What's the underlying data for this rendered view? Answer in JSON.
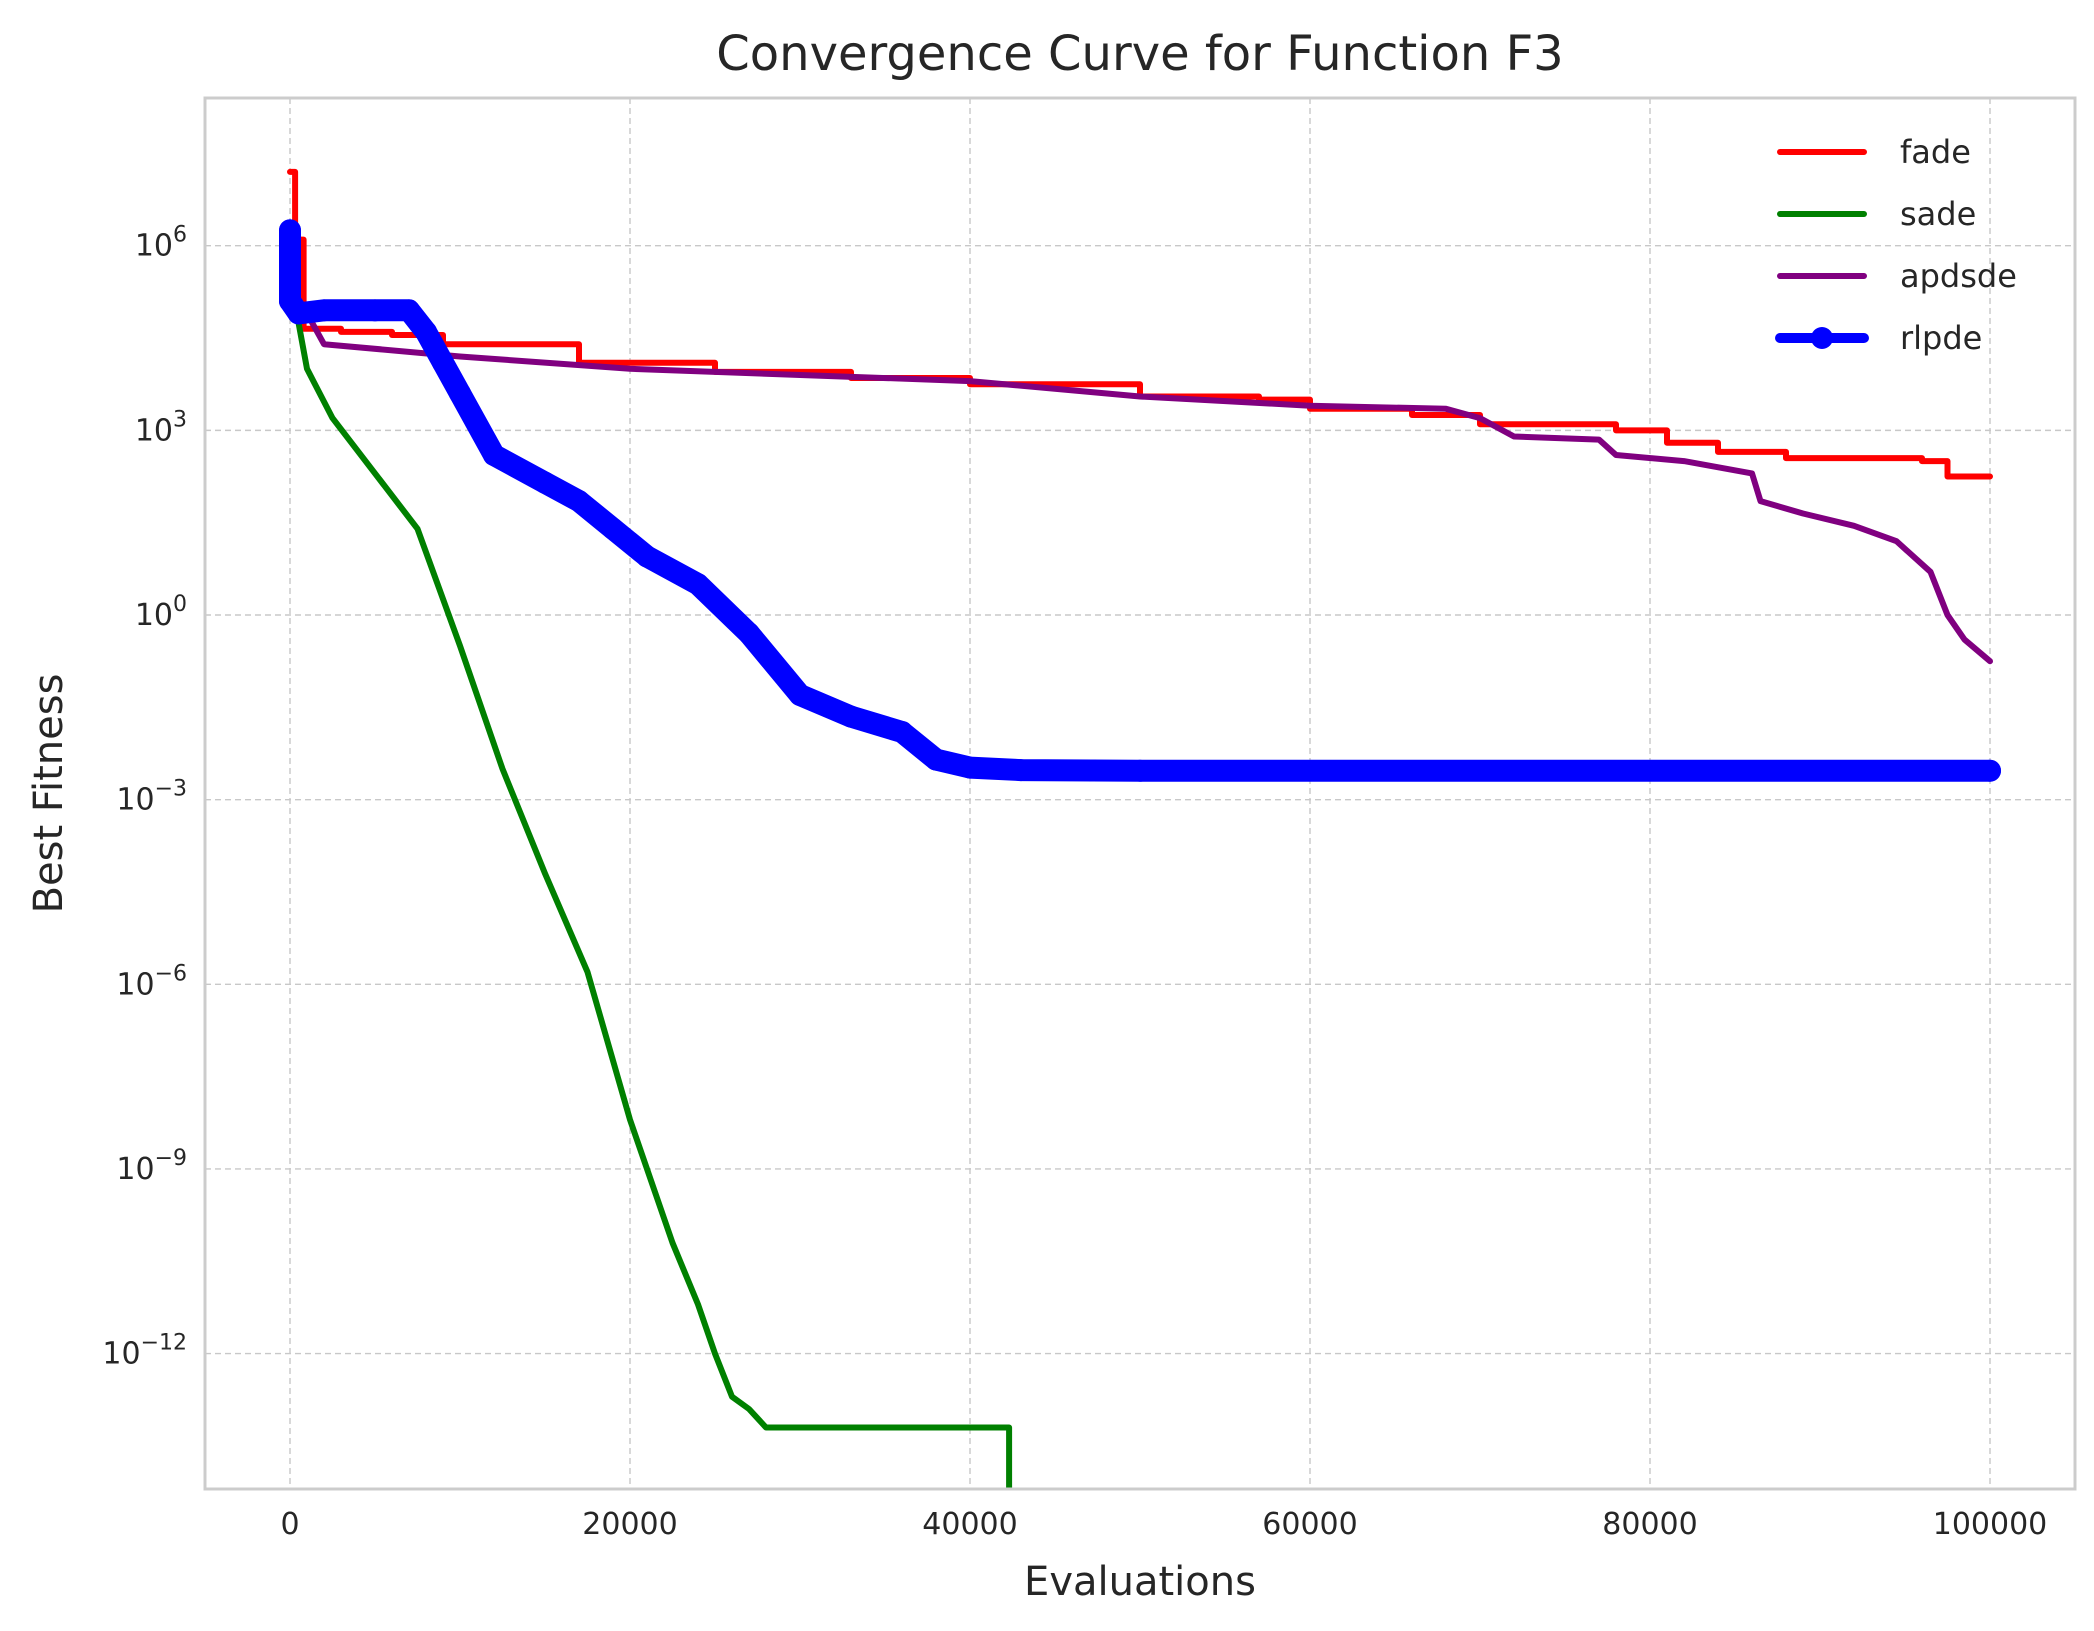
{
  "chart_data": {
    "type": "line",
    "title": "Convergence Curve for Function F3",
    "xlabel": "Evaluations",
    "ylabel": "Best Fitness",
    "xlim": [
      -5000,
      105000
    ],
    "yscale": "log",
    "ylim_log10": [
      -14.2,
      8.4
    ],
    "grid": true,
    "legend_position": "top-right",
    "xticks": [
      {
        "value": 0,
        "label": "0"
      },
      {
        "value": 20000,
        "label": "20000"
      },
      {
        "value": 40000,
        "label": "40000"
      },
      {
        "value": 60000,
        "label": "60000"
      },
      {
        "value": 80000,
        "label": "80000"
      },
      {
        "value": 100000,
        "label": "100000"
      }
    ],
    "yticks": [
      {
        "exp": 6,
        "base": "10",
        "sup": "6"
      },
      {
        "exp": 3,
        "base": "10",
        "sup": "3"
      },
      {
        "exp": 0,
        "base": "10",
        "sup": "0"
      },
      {
        "exp": -3,
        "base": "10",
        "sup": "−3"
      },
      {
        "exp": -6,
        "base": "10",
        "sup": "−6"
      },
      {
        "exp": -9,
        "base": "10",
        "sup": "−9"
      },
      {
        "exp": -12,
        "base": "10",
        "sup": "−12"
      }
    ],
    "series": [
      {
        "name": "fade",
        "color": "#ff0000",
        "style": "step",
        "points": [
          [
            0,
            7.2
          ],
          [
            300,
            6.1
          ],
          [
            800,
            4.65
          ],
          [
            3000,
            4.6
          ],
          [
            6000,
            4.55
          ],
          [
            9000,
            4.4
          ],
          [
            17000,
            4.1
          ],
          [
            25000,
            3.95
          ],
          [
            33000,
            3.85
          ],
          [
            40000,
            3.75
          ],
          [
            50000,
            3.55
          ],
          [
            57000,
            3.5
          ],
          [
            60000,
            3.35
          ],
          [
            66000,
            3.25
          ],
          [
            70000,
            3.1
          ],
          [
            78000,
            3.0
          ],
          [
            81000,
            2.8
          ],
          [
            84000,
            2.65
          ],
          [
            88000,
            2.55
          ],
          [
            96000,
            2.5
          ],
          [
            97500,
            2.25
          ],
          [
            100000,
            2.25
          ]
        ]
      },
      {
        "name": "sade",
        "color": "#008000",
        "style": "line",
        "points": [
          [
            0,
            5.5
          ],
          [
            1000,
            4.0
          ],
          [
            2500,
            3.2
          ],
          [
            5000,
            2.3
          ],
          [
            7500,
            1.4
          ],
          [
            10000,
            -0.5
          ],
          [
            12500,
            -2.5
          ],
          [
            15000,
            -4.2
          ],
          [
            17500,
            -5.8
          ],
          [
            20000,
            -8.2
          ],
          [
            22500,
            -10.2
          ],
          [
            24000,
            -11.2
          ],
          [
            25000,
            -12.0
          ],
          [
            26000,
            -12.7
          ],
          [
            27000,
            -12.9
          ],
          [
            28000,
            -13.2
          ],
          [
            42300,
            -13.2
          ],
          [
            42300,
            -14.2
          ]
        ]
      },
      {
        "name": "apdsde",
        "color": "#800080",
        "style": "line",
        "points": [
          [
            0,
            5.2
          ],
          [
            1000,
            4.9
          ],
          [
            2000,
            4.4
          ],
          [
            10000,
            4.2
          ],
          [
            20000,
            4.0
          ],
          [
            40000,
            3.8
          ],
          [
            50000,
            3.55
          ],
          [
            60000,
            3.4
          ],
          [
            68000,
            3.35
          ],
          [
            70000,
            3.2
          ],
          [
            72000,
            2.9
          ],
          [
            77000,
            2.85
          ],
          [
            78000,
            2.6
          ],
          [
            82000,
            2.5
          ],
          [
            86000,
            2.3
          ],
          [
            86500,
            1.85
          ],
          [
            89000,
            1.65
          ],
          [
            92000,
            1.45
          ],
          [
            94500,
            1.2
          ],
          [
            96500,
            0.7
          ],
          [
            97500,
            0.0
          ],
          [
            98500,
            -0.4
          ],
          [
            100000,
            -0.75
          ]
        ]
      },
      {
        "name": "rlpde",
        "color": "#0000ff",
        "style": "marker-line",
        "points": [
          [
            0,
            6.25
          ],
          [
            0,
            5.5
          ],
          [
            0,
            5.1
          ],
          [
            500,
            4.9
          ],
          [
            2000,
            4.95
          ],
          [
            5000,
            4.95
          ],
          [
            7000,
            4.95
          ],
          [
            8000,
            4.6
          ],
          [
            9000,
            4.1
          ],
          [
            10000,
            3.6
          ],
          [
            12000,
            2.6
          ],
          [
            15000,
            2.15
          ],
          [
            17000,
            1.85
          ],
          [
            19000,
            1.4
          ],
          [
            21000,
            0.95
          ],
          [
            24000,
            0.5
          ],
          [
            27000,
            -0.3
          ],
          [
            30000,
            -1.3
          ],
          [
            33000,
            -1.65
          ],
          [
            36000,
            -1.9
          ],
          [
            38000,
            -2.35
          ],
          [
            40000,
            -2.48
          ],
          [
            43000,
            -2.52
          ],
          [
            50000,
            -2.53
          ],
          [
            100000,
            -2.53
          ]
        ]
      }
    ]
  }
}
